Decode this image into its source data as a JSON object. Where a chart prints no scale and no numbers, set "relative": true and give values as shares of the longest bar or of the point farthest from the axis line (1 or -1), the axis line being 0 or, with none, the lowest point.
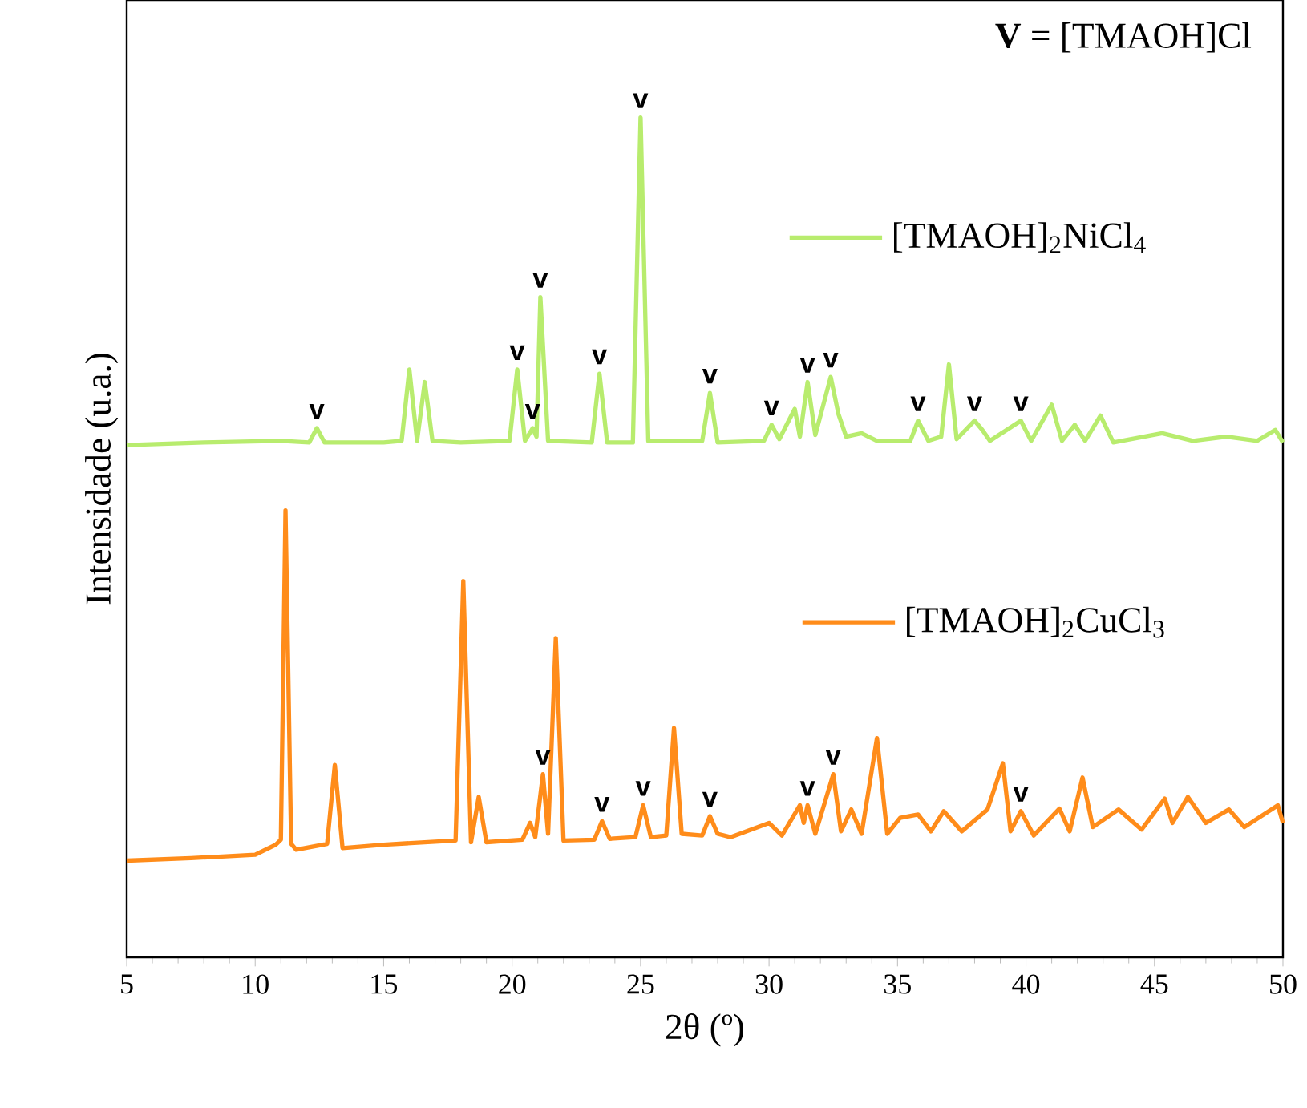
{
  "chart_data": {
    "type": "line",
    "relative": true,
    "xlabel": "2θ (º)",
    "ylabel": "Intensidade (u.a.)",
    "xlim": [
      5,
      50
    ],
    "xticks": [
      5,
      10,
      15,
      20,
      25,
      30,
      35,
      40,
      45,
      50
    ],
    "legend": "right",
    "series": [
      {
        "name": "[TMAOH]$_{2}$NiCl$_{4}$",
        "color": "#b8ec6e",
        "x": [
          5,
          8,
          11,
          12.1,
          12.4,
          12.7,
          15,
          15.7,
          16.0,
          16.3,
          16.6,
          16.9,
          18,
          19.9,
          20.2,
          20.5,
          20.8,
          20.95,
          21.1,
          21.4,
          23.1,
          23.4,
          23.7,
          24.7,
          25.0,
          25.3,
          27.4,
          27.7,
          28,
          29.8,
          30.1,
          30.4,
          31.0,
          31.2,
          31.5,
          31.8,
          32.4,
          32.7,
          33.0,
          33.6,
          34.2,
          35.5,
          35.8,
          36.2,
          36.7,
          37.0,
          37.3,
          38.0,
          38.3,
          38.6,
          39.8,
          40.2,
          41.0,
          41.4,
          41.9,
          42.3,
          42.9,
          43.4,
          45.3,
          46.5,
          47.8,
          49.0,
          49.7,
          50
        ],
        "values": [
          0.61,
          0.613,
          0.615,
          0.613,
          0.63,
          0.613,
          0.613,
          0.615,
          0.7,
          0.615,
          0.685,
          0.615,
          0.613,
          0.615,
          0.7,
          0.615,
          0.63,
          0.62,
          0.786,
          0.615,
          0.613,
          0.695,
          0.613,
          0.613,
          1.0,
          0.615,
          0.615,
          0.672,
          0.613,
          0.615,
          0.634,
          0.617,
          0.653,
          0.62,
          0.685,
          0.622,
          0.691,
          0.647,
          0.62,
          0.624,
          0.615,
          0.615,
          0.639,
          0.615,
          0.62,
          0.706,
          0.617,
          0.639,
          0.628,
          0.615,
          0.639,
          0.615,
          0.658,
          0.615,
          0.634,
          0.615,
          0.645,
          0.613,
          0.624,
          0.615,
          0.62,
          0.615,
          0.628,
          0.613
        ]
      },
      {
        "name": "[TMAOH]$_{2}$CuCl$_{3}$",
        "color": "#ff8c1a",
        "x": [
          5,
          7.5,
          10,
          10.8,
          11.0,
          11.18,
          11.4,
          11.6,
          12.8,
          13.1,
          13.4,
          15,
          17.8,
          18.1,
          18.4,
          18.7,
          19.0,
          20.4,
          20.7,
          20.9,
          21.2,
          21.4,
          21.7,
          22.0,
          23.2,
          23.5,
          23.8,
          24.8,
          25.1,
          25.4,
          26.0,
          26.3,
          26.6,
          27.4,
          27.7,
          28.0,
          28.5,
          30.0,
          30.5,
          31.2,
          31.35,
          31.5,
          31.8,
          32.5,
          32.8,
          33.2,
          33.6,
          34.2,
          34.6,
          35.1,
          35.8,
          36.3,
          36.8,
          37.5,
          38.5,
          39.1,
          39.4,
          39.8,
          40.3,
          41.3,
          41.7,
          42.2,
          42.6,
          43.6,
          44.5,
          45.4,
          45.7,
          46.3,
          47.0,
          47.9,
          48.5,
          49.8,
          50
        ],
        "values": [
          0.115,
          0.118,
          0.122,
          0.134,
          0.14,
          0.532,
          0.135,
          0.128,
          0.135,
          0.229,
          0.13,
          0.134,
          0.139,
          0.448,
          0.137,
          0.191,
          0.137,
          0.14,
          0.16,
          0.143,
          0.218,
          0.147,
          0.38,
          0.139,
          0.14,
          0.162,
          0.141,
          0.143,
          0.181,
          0.143,
          0.145,
          0.273,
          0.147,
          0.145,
          0.168,
          0.147,
          0.143,
          0.16,
          0.145,
          0.181,
          0.16,
          0.181,
          0.147,
          0.218,
          0.15,
          0.176,
          0.147,
          0.261,
          0.147,
          0.166,
          0.17,
          0.15,
          0.174,
          0.15,
          0.176,
          0.231,
          0.15,
          0.174,
          0.145,
          0.177,
          0.15,
          0.214,
          0.155,
          0.176,
          0.152,
          0.189,
          0.16,
          0.191,
          0.16,
          0.176,
          0.155,
          0.181,
          0.16
        ]
      }
    ],
    "annotations": [
      "**V** = [TMAOH]Cl",
      {
        "text": "v",
        "x": 12.4,
        "y": 0.63
      },
      {
        "text": "v",
        "x": 20.2,
        "y": 0.7
      },
      {
        "text": "v",
        "x": 20.8,
        "y": 0.63
      },
      {
        "text": "v",
        "x": 21.1,
        "y": 0.786
      },
      {
        "text": "v",
        "x": 23.4,
        "y": 0.695
      },
      {
        "text": "v",
        "x": 25.0,
        "y": 1.0
      },
      {
        "text": "v",
        "x": 27.7,
        "y": 0.672
      },
      {
        "text": "v",
        "x": 30.1,
        "y": 0.634
      },
      {
        "text": "v",
        "x": 31.5,
        "y": 0.685
      },
      {
        "text": "v",
        "x": 32.4,
        "y": 0.691
      },
      {
        "text": "v",
        "x": 35.8,
        "y": 0.639
      },
      {
        "text": "v",
        "x": 38.0,
        "y": 0.639
      },
      {
        "text": "v",
        "x": 39.8,
        "y": 0.639
      },
      {
        "text": "v",
        "x": 21.2,
        "y": 0.218
      },
      {
        "text": "v",
        "x": 23.5,
        "y": 0.162
      },
      {
        "text": "v",
        "x": 25.1,
        "y": 0.181
      },
      {
        "text": "v",
        "x": 27.7,
        "y": 0.168
      },
      {
        "text": "v",
        "x": 31.5,
        "y": 0.181
      },
      {
        "text": "v",
        "x": 32.5,
        "y": 0.218
      },
      {
        "text": "v",
        "x": 39.8,
        "y": 0.174
      }
    ]
  }
}
